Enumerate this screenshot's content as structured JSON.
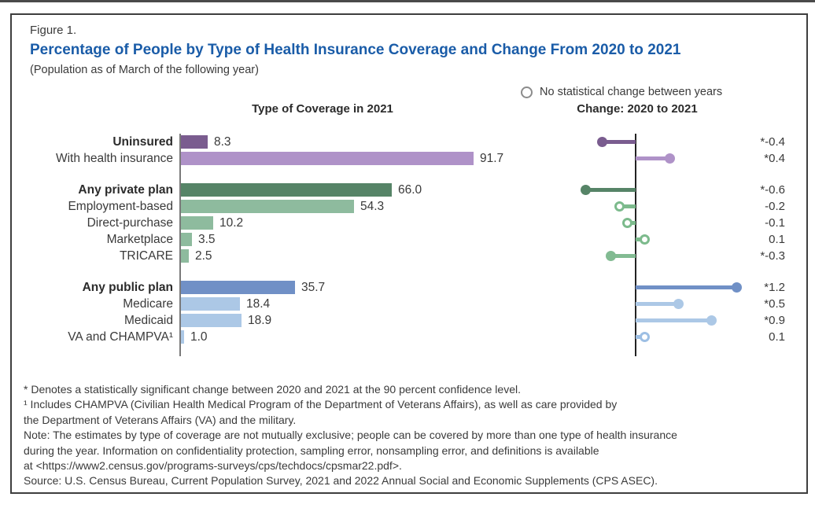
{
  "figure_label": "Figure 1.",
  "title": "Percentage of People by Type of Health Insurance Coverage and Change From 2020 to 2021",
  "subtitle": "(Population as of March of the following year)",
  "legend": {
    "marker": "open-circle-icon",
    "label": "No statistical change between years"
  },
  "headers": {
    "left": "Type of Coverage in 2021",
    "right": "Change: 2020 to 2021"
  },
  "chart_data": {
    "type": "bar",
    "orientation": "horizontal",
    "title": "Percentage of People by Type of Health Insurance Coverage and Change From 2020 to 2021",
    "panels": [
      {
        "title": "Type of Coverage in 2021",
        "unit": "percent",
        "xlim": [
          0,
          100
        ]
      },
      {
        "title": "Change: 2020 to 2021",
        "unit": "percentage points",
        "xlim": [
          -0.8,
          2.2
        ]
      }
    ],
    "legend_note": "Open circle = no statistical change between years; * = statistically significant change at the 90 percent confidence level",
    "categories": [
      "Uninsured",
      "With health insurance",
      "Any private plan",
      "Employment-based",
      "Direct-purchase",
      "Marketplace",
      "TRICARE",
      "Any public plan",
      "Medicare",
      "Medicaid",
      "VA and CHAMPVA¹"
    ],
    "series": [
      {
        "name": "Type of Coverage in 2021 (percent)",
        "values": [
          8.3,
          91.7,
          66.0,
          54.3,
          10.2,
          3.5,
          2.5,
          35.7,
          18.4,
          18.9,
          1.0
        ]
      },
      {
        "name": "Change: 2020 to 2021 (percentage points)",
        "values": [
          -0.4,
          0.4,
          -0.6,
          -0.2,
          -0.1,
          0.1,
          -0.3,
          1.2,
          0.5,
          0.9,
          0.1
        ]
      }
    ],
    "rows": [
      {
        "label": "Uninsured",
        "bold": true,
        "group": 0,
        "value": 8.3,
        "value_label": "8.3",
        "change": -0.4,
        "change_label": "*-0.4",
        "significant": true,
        "open": false,
        "color": "#7a5c8f"
      },
      {
        "label": "With health insurance",
        "bold": false,
        "group": 0,
        "value": 91.7,
        "value_label": "91.7",
        "change": 0.4,
        "change_label": "*0.4",
        "significant": true,
        "open": false,
        "color": "#af92c8"
      },
      {
        "label": "Any private plan",
        "bold": true,
        "group": 1,
        "value": 66.0,
        "value_label": "66.0",
        "change": -0.6,
        "change_label": "*-0.6",
        "significant": true,
        "open": false,
        "color": "#568467"
      },
      {
        "label": "Employment-based",
        "bold": false,
        "group": 1,
        "value": 54.3,
        "value_label": "54.3",
        "change": -0.2,
        "change_label": "-0.2",
        "significant": false,
        "open": true,
        "color": "#8ebb9e",
        "marker_color": "#7cba8c"
      },
      {
        "label": "Direct-purchase",
        "bold": false,
        "group": 1,
        "value": 10.2,
        "value_label": "10.2",
        "change": -0.1,
        "change_label": "-0.1",
        "significant": false,
        "open": true,
        "color": "#8ebb9e",
        "marker_color": "#7cba8c"
      },
      {
        "label": "Marketplace",
        "bold": false,
        "group": 1,
        "value": 3.5,
        "value_label": "3.5",
        "change": 0.1,
        "change_label": "0.1",
        "significant": false,
        "open": true,
        "color": "#8ebb9e",
        "marker_color": "#7cba8c"
      },
      {
        "label": "TRICARE",
        "bold": false,
        "group": 1,
        "value": 2.5,
        "value_label": "2.5",
        "change": -0.3,
        "change_label": "*-0.3",
        "significant": true,
        "open": false,
        "color": "#8ebb9e",
        "marker_color": "#82bb92"
      },
      {
        "label": "Any public plan",
        "bold": true,
        "group": 2,
        "value": 35.7,
        "value_label": "35.7",
        "change": 1.2,
        "change_label": "*1.2",
        "significant": true,
        "open": false,
        "color": "#7090c6"
      },
      {
        "label": "Medicare",
        "bold": false,
        "group": 2,
        "value": 18.4,
        "value_label": "18.4",
        "change": 0.5,
        "change_label": "*0.5",
        "significant": true,
        "open": false,
        "color": "#acc8e6"
      },
      {
        "label": "Medicaid",
        "bold": false,
        "group": 2,
        "value": 18.9,
        "value_label": "18.9",
        "change": 0.9,
        "change_label": "*0.9",
        "significant": true,
        "open": false,
        "color": "#acc8e6"
      },
      {
        "label": "VA and CHAMPVA¹",
        "bold": false,
        "group": 2,
        "value": 1.0,
        "value_label": "1.0",
        "change": 0.1,
        "change_label": "0.1",
        "significant": false,
        "open": true,
        "color": "#acc8e6",
        "marker_color": "#9dbfe4"
      }
    ]
  },
  "footnotes": [
    "* Denotes a statistically significant change between 2020 and 2021 at the 90 percent confidence level.",
    "¹ Includes CHAMPVA (Civilian Health Medical Program of the Department of Veterans Affairs), as well as care provided by",
    "the Department of Veterans Affairs (VA) and the military.",
    "Note: The estimates by type of coverage are not mutually exclusive; people can be covered by more than one type of health insurance",
    "during the year. Information on confidentiality protection, sampling error, nonsampling error, and definitions is available",
    "at <https://www2.census.gov/programs-surveys/cps/techdocs/cpsmar22.pdf>.",
    "Source: U.S. Census Bureau, Current Population Survey, 2021 and 2022 Annual Social and Economic Supplements (CPS ASEC)."
  ]
}
